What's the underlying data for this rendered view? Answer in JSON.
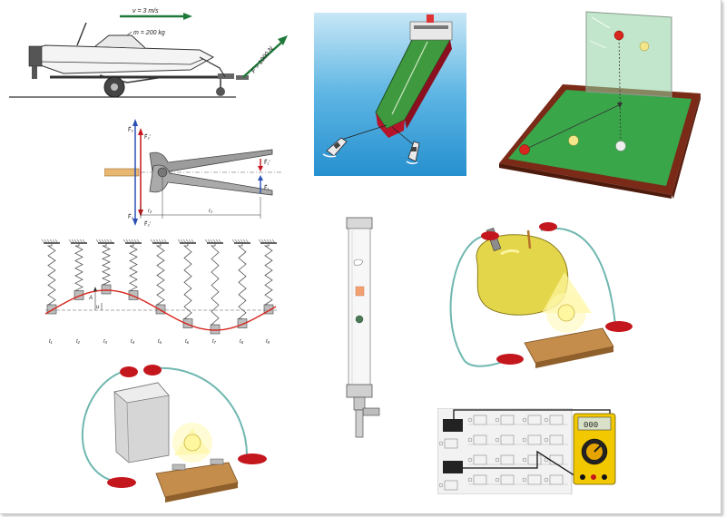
{
  "boat": {
    "velocity": "v = 3 m/s",
    "mass": "m = 200 kg",
    "force": "F = 1000 N"
  },
  "pliers": {
    "f2": "F⃗₂",
    "f2p": "F⃗₂'",
    "f1p": "F⃗₁'",
    "f1": "F⃗₁",
    "f3": "F⃗₃",
    "f2pp": "F⃗₂'",
    "r2": "r₂",
    "r1": "r₁"
  },
  "springs": {
    "amp": "A",
    "disp": "u",
    "times": [
      "t₁",
      "t₂",
      "t₃",
      "t₄",
      "t₅",
      "t₆",
      "t₇",
      "t₈",
      "t₉"
    ]
  },
  "multimeter": {
    "display": "000"
  },
  "colors": {
    "sea": "#3aa3d9",
    "hull_green": "#3f9a3f",
    "hull_red": "#b5152a",
    "felt": "#3aa64a",
    "rail": "#7a2a16",
    "wire": "#6fb7b0",
    "clip": "#c4171d",
    "wood": "#c58d4c",
    "lemon": "#e4d64a",
    "meter": "#f2c900"
  }
}
